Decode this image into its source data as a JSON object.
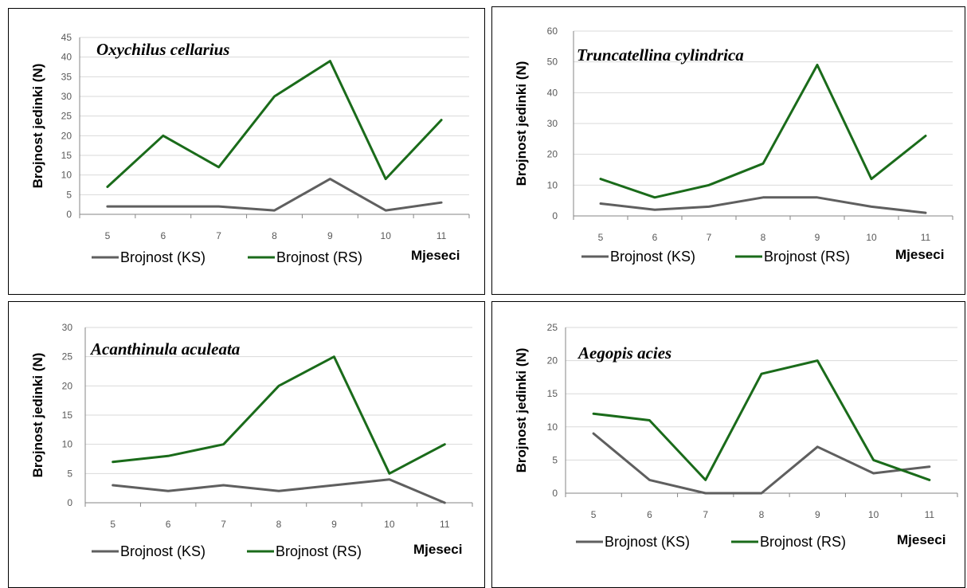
{
  "colors": {
    "ks": "#5f5f5f",
    "rs": "#1a6b1a",
    "grid": "#d9d9d9",
    "axis": "#868686"
  },
  "chart_data": [
    {
      "type": "line",
      "title": "Oxychilus cellarius",
      "xlabel": "Mjeseci",
      "ylabel": "Brojnost jedinki (N)",
      "categories": [
        "5",
        "6",
        "7",
        "8",
        "9",
        "10",
        "11"
      ],
      "ylim": [
        0,
        45
      ],
      "yticks": [
        0,
        5,
        10,
        15,
        20,
        25,
        30,
        35,
        40,
        45
      ],
      "grid": true,
      "legend_position": "bottom",
      "series": [
        {
          "name": "Brojnost (KS)",
          "color": "#5f5f5f",
          "values": [
            2,
            2,
            2,
            1,
            9,
            1,
            3
          ]
        },
        {
          "name": "Brojnost (RS)",
          "color": "#1a6b1a",
          "values": [
            7,
            20,
            12,
            30,
            39,
            9,
            24
          ]
        }
      ]
    },
    {
      "type": "line",
      "title": "Truncatellina cylindrica",
      "xlabel": "Mjeseci",
      "ylabel": "Brojnost jedinki (N)",
      "categories": [
        "5",
        "6",
        "7",
        "8",
        "9",
        "10",
        "11"
      ],
      "ylim": [
        0,
        60
      ],
      "yticks": [
        0,
        10,
        20,
        30,
        40,
        50,
        60
      ],
      "grid": true,
      "legend_position": "bottom",
      "series": [
        {
          "name": "Brojnost (KS)",
          "color": "#5f5f5f",
          "values": [
            4,
            2,
            3,
            6,
            6,
            3,
            1
          ]
        },
        {
          "name": "Brojnost (RS)",
          "color": "#1a6b1a",
          "values": [
            12,
            6,
            10,
            17,
            49,
            12,
            26
          ]
        }
      ]
    },
    {
      "type": "line",
      "title": "Acanthinula aculeata",
      "xlabel": "Mjeseci",
      "ylabel": "Brojnost jedinki (N)",
      "categories": [
        "5",
        "6",
        "7",
        "8",
        "9",
        "10",
        "11"
      ],
      "ylim": [
        0,
        30
      ],
      "yticks": [
        0,
        5,
        10,
        15,
        20,
        25,
        30
      ],
      "grid": true,
      "legend_position": "bottom",
      "series": [
        {
          "name": "Brojnost (KS)",
          "color": "#5f5f5f",
          "values": [
            3,
            2,
            3,
            2,
            3,
            4,
            0
          ]
        },
        {
          "name": "Brojnost (RS)",
          "color": "#1a6b1a",
          "values": [
            7,
            8,
            10,
            20,
            25,
            5,
            10
          ]
        }
      ]
    },
    {
      "type": "line",
      "title": "Aegopis acies",
      "xlabel": "Mjeseci",
      "ylabel": "Brojnost jedinki (N)",
      "categories": [
        "5",
        "6",
        "7",
        "8",
        "9",
        "10",
        "11"
      ],
      "ylim": [
        0,
        25
      ],
      "yticks": [
        0,
        5,
        10,
        15,
        20,
        25
      ],
      "grid": true,
      "legend_position": "bottom",
      "series": [
        {
          "name": "Brojnost (KS)",
          "color": "#5f5f5f",
          "values": [
            9,
            2,
            0,
            0,
            7,
            3,
            4
          ]
        },
        {
          "name": "Brojnost (RS)",
          "color": "#1a6b1a",
          "values": [
            12,
            11,
            2,
            18,
            20,
            5,
            2
          ]
        }
      ]
    }
  ]
}
